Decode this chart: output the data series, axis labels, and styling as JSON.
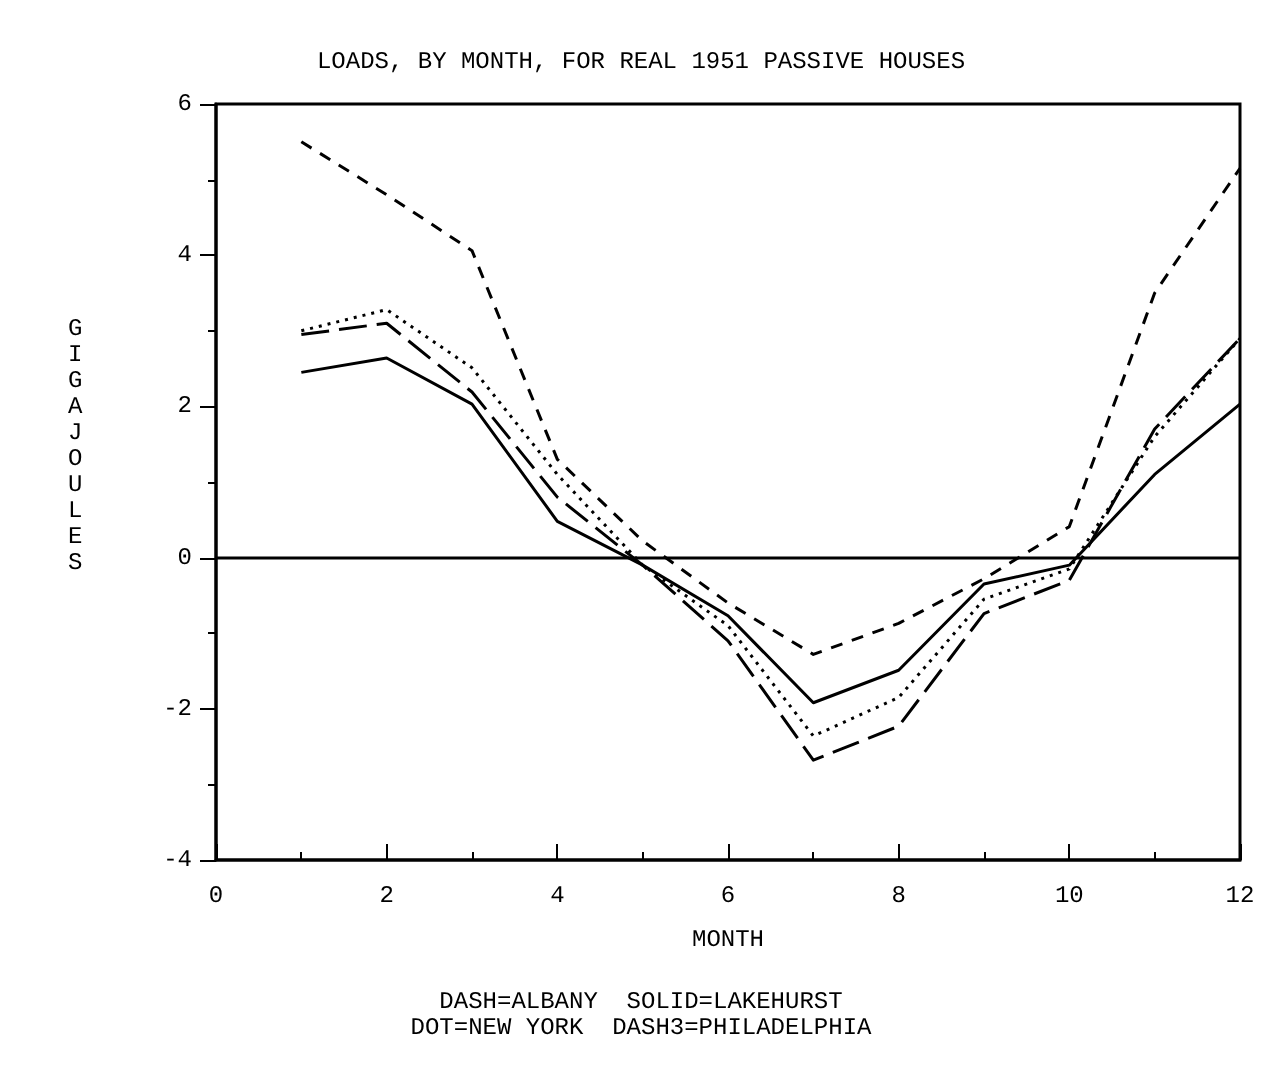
{
  "chart_data": {
    "type": "line",
    "title": "LOADS, BY MONTH, FOR REAL 1951 PASSIVE HOUSES",
    "xlabel": "MONTH",
    "ylabel": "GIGAJOULES",
    "annotations": [
      "DASH=ALBANY  SOLID=LAKEHURST",
      "DOT=NEW YORK  DASH3=PHILADELPHIA"
    ],
    "x": [
      1,
      2,
      3,
      4,
      5,
      6,
      7,
      8,
      9,
      10,
      11,
      12
    ],
    "series": [
      {
        "color": "#000000",
        "line_style": "dashed",
        "values": [
          5.5,
          4.8,
          4.06,
          1.3,
          0.22,
          -0.6,
          -1.28,
          -0.87,
          -0.28,
          0.41,
          3.5,
          5.15
        ]
      },
      {
        "color": "#000000",
        "line_style": "solid",
        "values": [
          2.45,
          2.64,
          2.03,
          0.48,
          -0.1,
          -0.77,
          -1.92,
          -1.49,
          -0.35,
          -0.1,
          1.1,
          2.03
        ]
      },
      {
        "color": "#000000",
        "line_style": "dotted",
        "values": [
          3.0,
          3.28,
          2.51,
          1.1,
          -0.1,
          -0.9,
          -2.36,
          -1.85,
          -0.55,
          -0.15,
          1.6,
          2.9
        ]
      },
      {
        "color": "#000000",
        "line_style": "longdash",
        "values": [
          2.95,
          3.1,
          2.19,
          0.8,
          -0.1,
          -1.1,
          -2.68,
          -2.23,
          -0.74,
          -0.3,
          1.7,
          2.9
        ]
      }
    ],
    "ref_lines": [
      {
        "axis": "y",
        "value": 0,
        "color": "#000000",
        "line_style": "solid"
      }
    ],
    "xlim": [
      0,
      12
    ],
    "xticks": [
      0,
      2,
      4,
      6,
      8,
      10,
      12
    ],
    "ylim": [
      -4,
      6
    ],
    "yticks": [
      -4,
      -2,
      0,
      2,
      4,
      6
    ],
    "grid": false,
    "marker": "none"
  }
}
